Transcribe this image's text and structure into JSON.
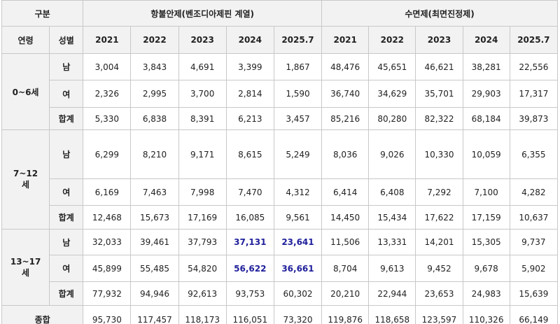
{
  "header": {
    "group_label": "구분",
    "age_label": "연령",
    "sex_label": "성별",
    "groups": [
      {
        "name": "항불안제(벤조디아제핀 계열)",
        "years": [
          "2021",
          "2022",
          "2023",
          "2024",
          "2025.7"
        ]
      },
      {
        "name": "수면제(최면진정제)",
        "years": [
          "2021",
          "2022",
          "2023",
          "2024",
          "2025.7"
        ]
      }
    ]
  },
  "age_groups": [
    {
      "label_lines": [
        "0~6세"
      ],
      "rows": [
        {
          "sex": "남",
          "values": [
            "3,004",
            "3,843",
            "4,691",
            "3,399",
            "1,867",
            "48,476",
            "45,651",
            "46,621",
            "38,281",
            "22,556"
          ]
        },
        {
          "sex": "여",
          "values": [
            "2,326",
            "2,995",
            "3,700",
            "2,814",
            "1,590",
            "36,740",
            "34,629",
            "35,701",
            "29,903",
            "17,317"
          ]
        },
        {
          "sex": "합계",
          "values": [
            "5,330",
            "6,838",
            "8,391",
            "6,213",
            "3,457",
            "85,216",
            "80,280",
            "82,322",
            "68,184",
            "39,873"
          ]
        }
      ]
    },
    {
      "label_lines": [
        "7~12",
        "세"
      ],
      "rows": [
        {
          "sex": "남",
          "values": [
            "6,299",
            "8,210",
            "9,171",
            "8,615",
            "5,249",
            "8,036",
            "9,026",
            "10,330",
            "10,059",
            "6,355"
          ]
        },
        {
          "sex": "여",
          "values": [
            "6,169",
            "7,463",
            "7,998",
            "7,470",
            "4,312",
            "6,414",
            "6,408",
            "7,292",
            "7,100",
            "4,282"
          ]
        },
        {
          "sex": "합계",
          "values": [
            "12,468",
            "15,673",
            "17,169",
            "16,085",
            "9,561",
            "14,450",
            "15,434",
            "17,622",
            "17,159",
            "10,637"
          ]
        }
      ]
    },
    {
      "label_lines": [
        "13~17",
        "세"
      ],
      "rows": [
        {
          "sex": "남",
          "values": [
            "32,033",
            "39,461",
            "37,793",
            {
              "text": "37,131",
              "color": "#1f1f9c"
            },
            {
              "text": "23,641",
              "color": "#1f1f9c"
            },
            "11,506",
            "13,331",
            "14,201",
            "15,305",
            "9,737"
          ]
        },
        {
          "sex": "여",
          "values": [
            "45,899",
            "55,485",
            "54,820",
            {
              "text": "56,622",
              "color": "#1f1f9c"
            },
            {
              "text": "36,661",
              "color": "#1f1f9c"
            },
            "8,704",
            "9,613",
            "9,452",
            "9,678",
            "5,902"
          ]
        },
        {
          "sex": "합계",
          "values": [
            "77,932",
            "94,946",
            "92,613",
            "93,753",
            "60,302",
            "20,210",
            "22,944",
            "23,653",
            "24,983",
            "15,639"
          ]
        }
      ]
    }
  ],
  "total": {
    "label": "종합",
    "values": [
      "95,730",
      "117,457",
      "118,173",
      "116,051",
      "73,320",
      "119,876",
      "118,658",
      "123,597",
      "110,326",
      "66,149"
    ]
  }
}
